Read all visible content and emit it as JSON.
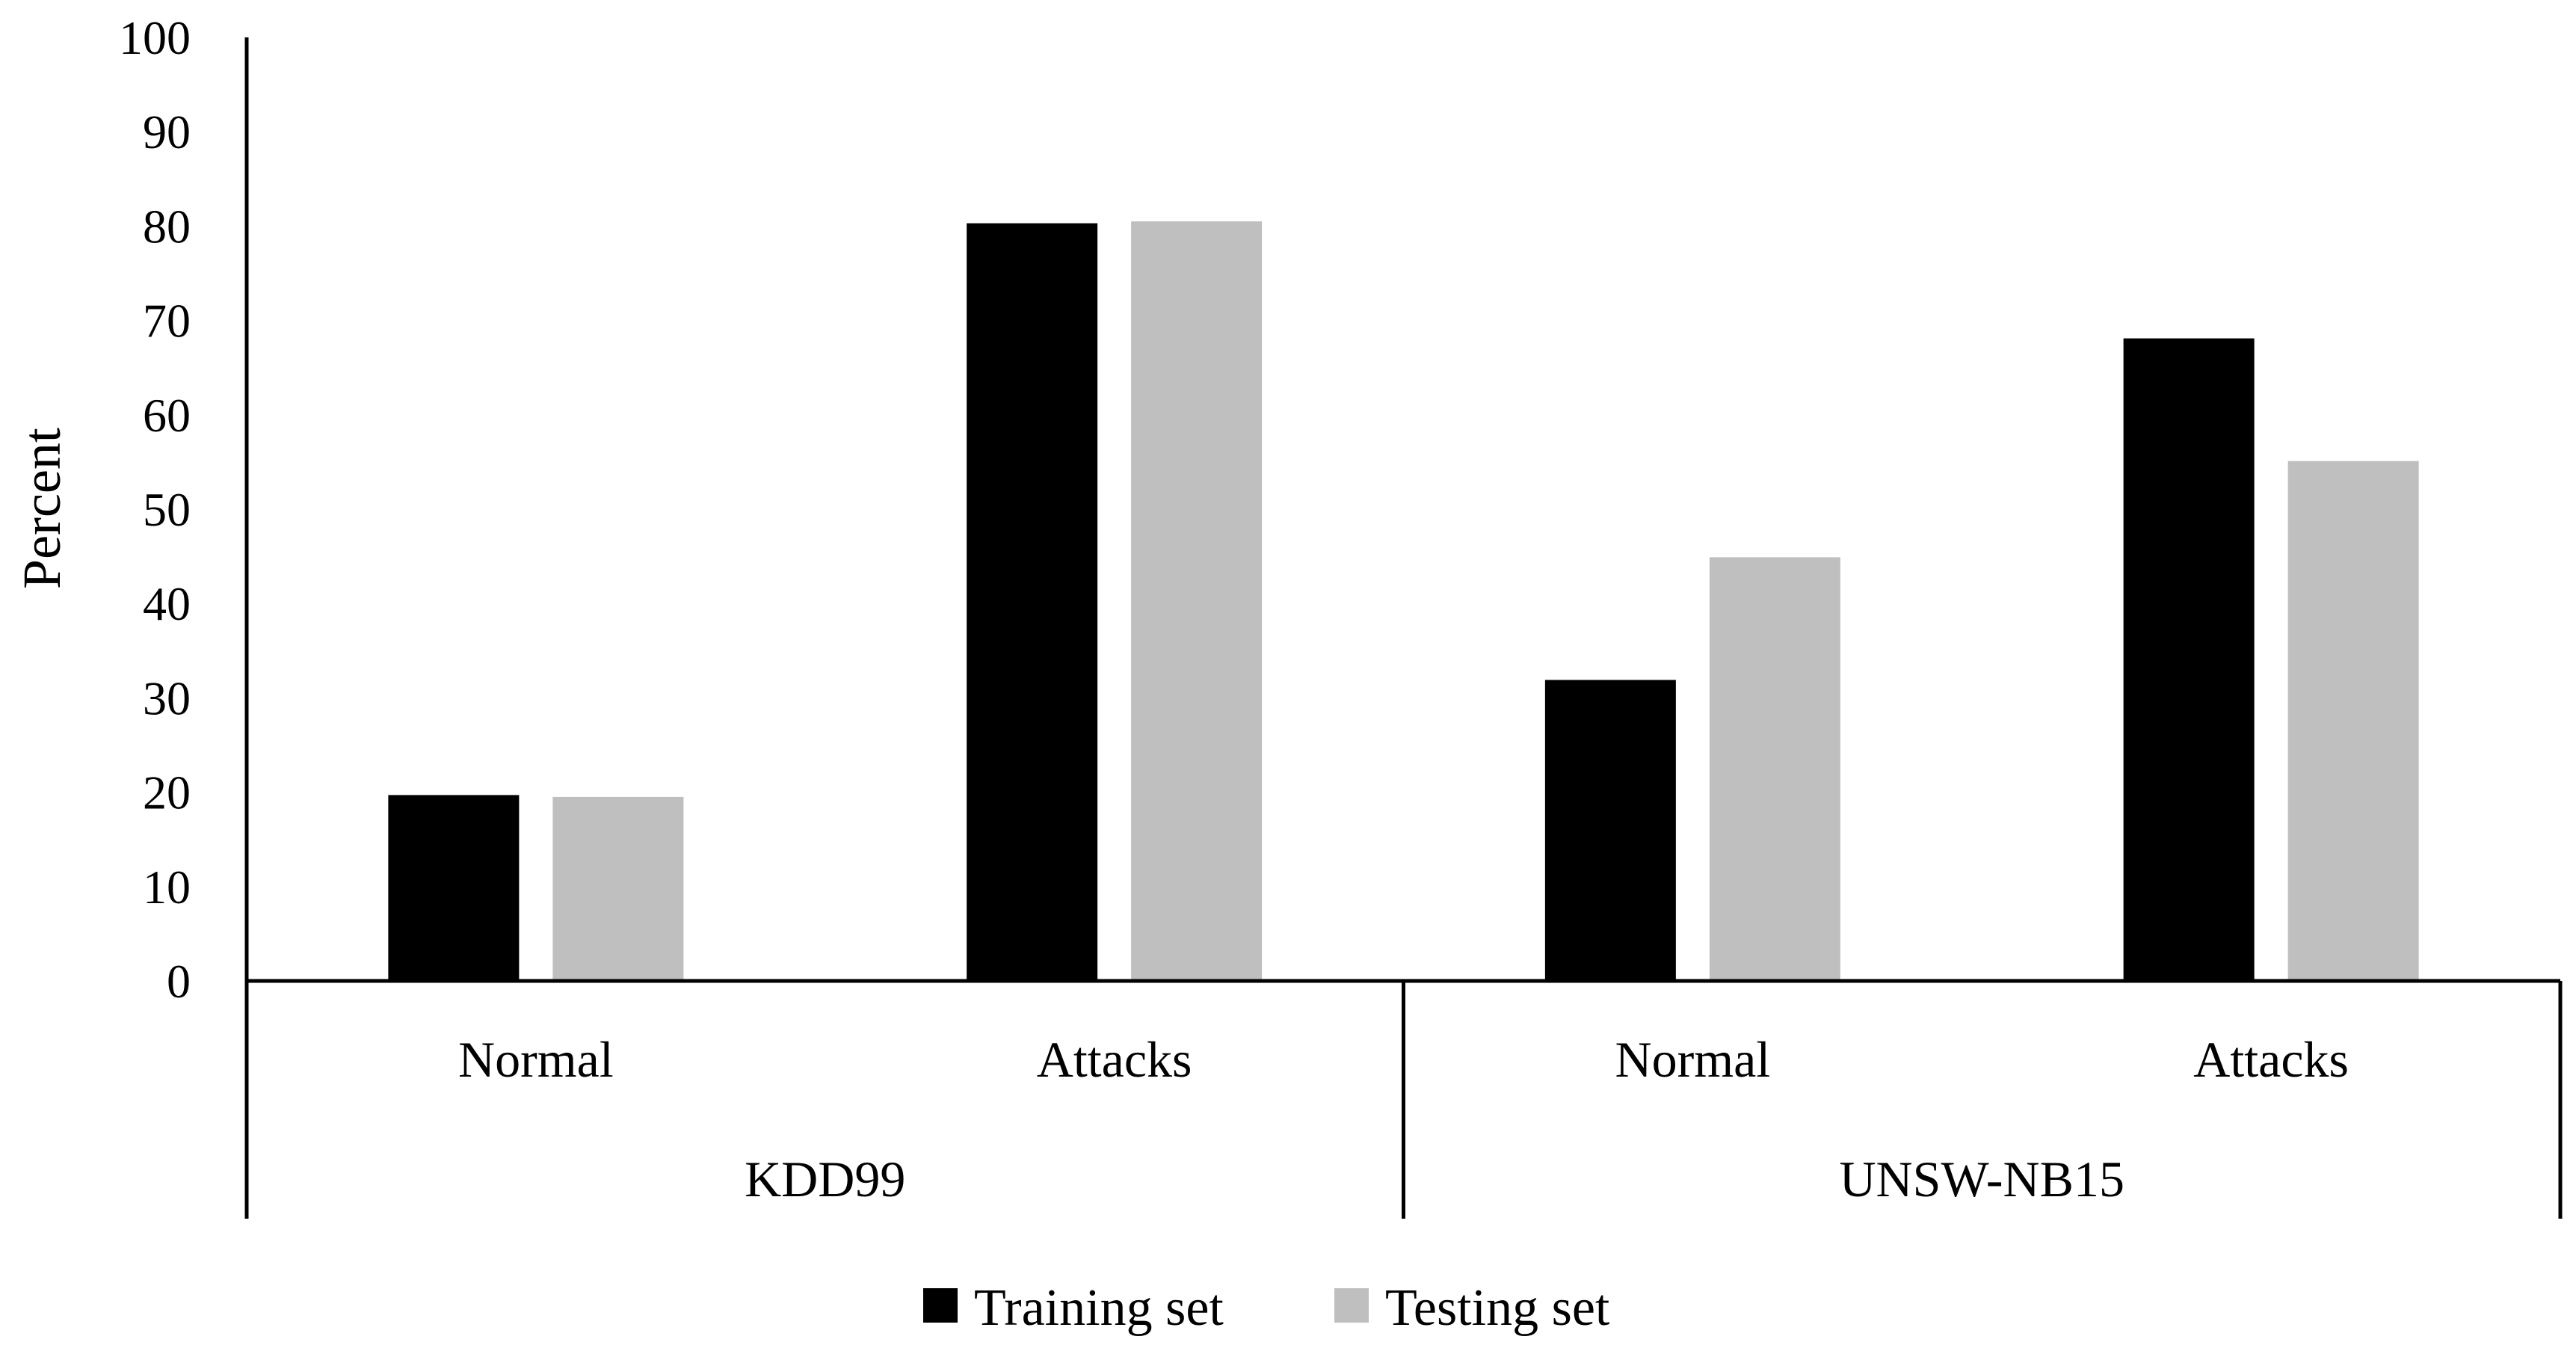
{
  "chart_data": {
    "type": "bar",
    "title": "",
    "xlabel": "",
    "ylabel": "Percent",
    "ylim": [
      0,
      100
    ],
    "yticks": [
      0,
      10,
      20,
      30,
      40,
      50,
      60,
      70,
      80,
      90,
      100
    ],
    "groups": [
      {
        "name": "KDD99",
        "categories": [
          "Normal",
          "Attacks"
        ]
      },
      {
        "name": "UNSW-NB15",
        "categories": [
          "Normal",
          "Attacks"
        ]
      }
    ],
    "categories": [
      "Normal",
      "Attacks",
      "Normal",
      "Attacks"
    ],
    "series": [
      {
        "name": "Training set",
        "color": "#000000",
        "values": [
          19.7,
          80.3,
          31.9,
          68.1
        ]
      },
      {
        "name": "Testing set",
        "color": "#bfbfbf",
        "values": [
          19.5,
          80.5,
          44.9,
          55.1
        ]
      }
    ],
    "grid": false,
    "legend_position": "bottom"
  }
}
